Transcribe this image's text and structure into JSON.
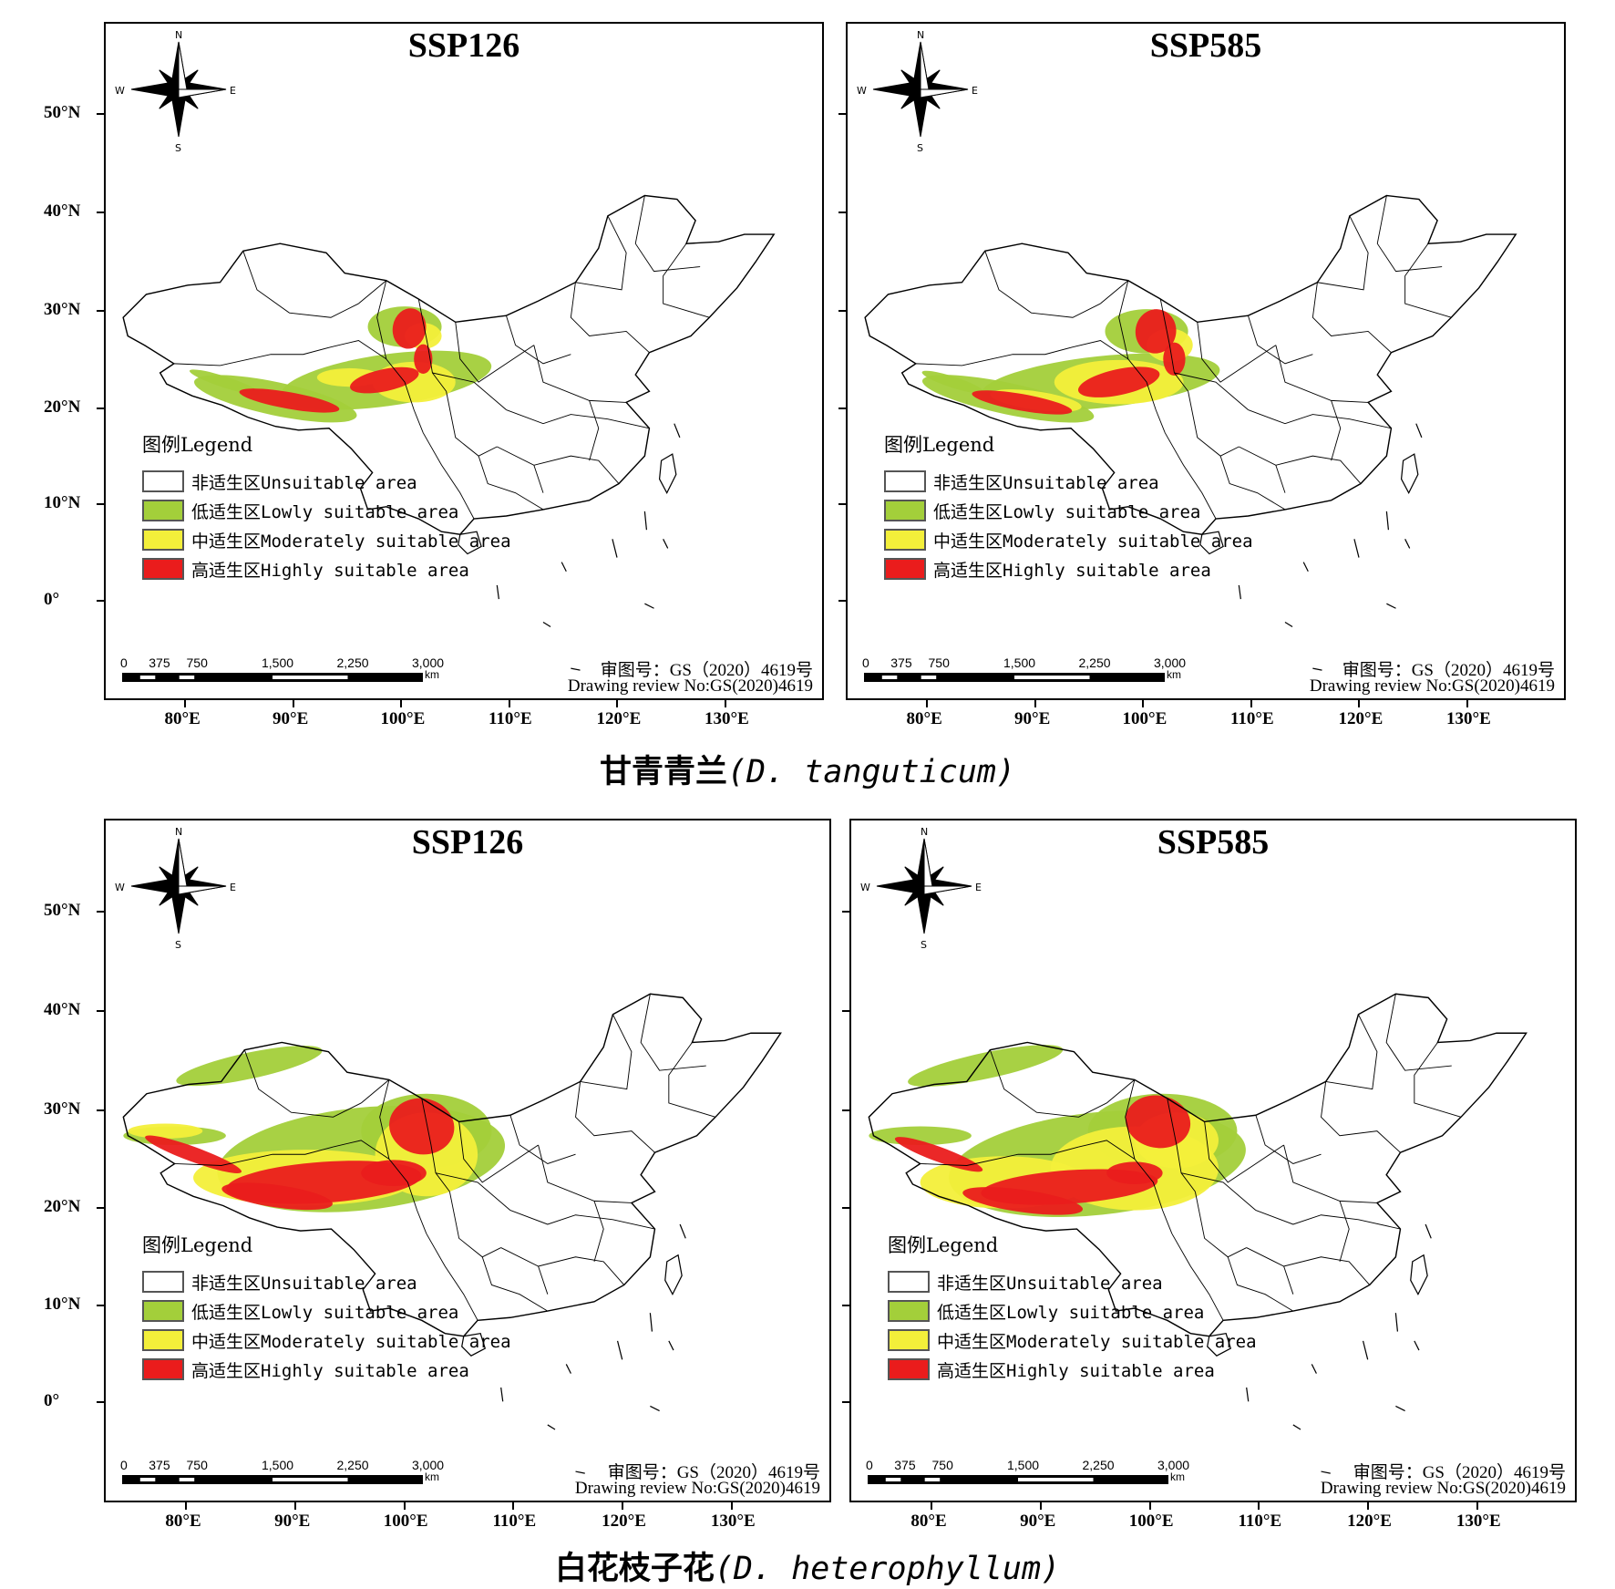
{
  "legend": {
    "title": "图例Legend",
    "classes": [
      {
        "label": "非适生区Unsuitable area",
        "color": "#ffffff"
      },
      {
        "label": "低适生区Lowly suitable area",
        "color": "#a3cf3a"
      },
      {
        "label": "中适生区Moderately suitable area",
        "color": "#f3ef3a"
      },
      {
        "label": "高适生区Highly suitable area",
        "color": "#ea1c1c"
      }
    ]
  },
  "scale": {
    "ticks": [
      "0",
      "375",
      "750",
      "1,500",
      "2,250",
      "3,000"
    ],
    "unit": "km"
  },
  "credit": {
    "line1": "审图号：GS（2020）4619号",
    "line2": "Drawing review No:GS(2020)4619"
  },
  "axes": {
    "lat_labels": [
      "50°N",
      "40°N",
      "30°N",
      "20°N",
      "10°N",
      "0°"
    ],
    "lon_labels": [
      "80°E",
      "90°E",
      "100°E",
      "110°E",
      "120°E",
      "130°E"
    ]
  },
  "compass": {
    "n": "N",
    "s": "S",
    "e": "E",
    "w": "W"
  },
  "species": [
    {
      "name_cn": "甘青青兰",
      "name_lat": "(D. tanguticum)",
      "panels": [
        {
          "scenario": "SSP126"
        },
        {
          "scenario": "SSP585"
        }
      ]
    },
    {
      "name_cn": "白花枝子花",
      "name_lat": "(D. heterophyllum)",
      "panels": [
        {
          "scenario": "SSP126"
        },
        {
          "scenario": "SSP585"
        }
      ]
    }
  ]
}
